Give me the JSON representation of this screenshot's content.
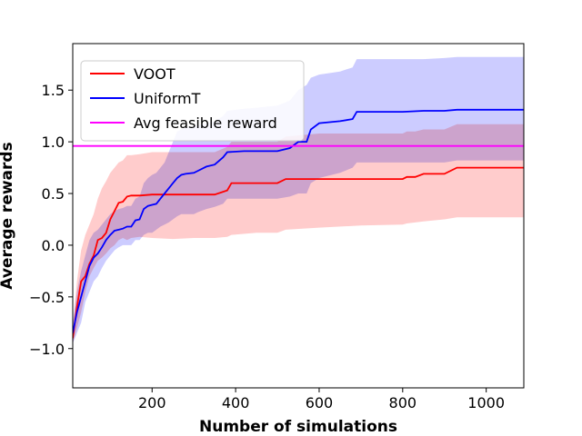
{
  "chart_data": {
    "type": "line",
    "title": "",
    "xlabel": "Number of simulations",
    "ylabel": "Average rewards",
    "xlim": [
      10,
      1090
    ],
    "ylim": [
      -1.38,
      1.95
    ],
    "xticks": [
      200,
      400,
      600,
      800,
      1000
    ],
    "yticks": [
      -1.0,
      -0.5,
      0.0,
      0.5,
      1.0,
      1.5
    ],
    "grid": false,
    "legend_position": "top-left",
    "series": [
      {
        "name": "VOOT",
        "color": "#ff0000",
        "band_color": "#ffcccc",
        "x": [
          10,
          20,
          30,
          40,
          50,
          60,
          70,
          80,
          90,
          100,
          110,
          120,
          130,
          140,
          150,
          170,
          200,
          250,
          300,
          350,
          380,
          390,
          450,
          500,
          520,
          600,
          700,
          800,
          810,
          830,
          850,
          900,
          930,
          1000,
          1090
        ],
        "y": [
          -0.9,
          -0.6,
          -0.35,
          -0.3,
          -0.18,
          -0.1,
          0.05,
          0.07,
          0.12,
          0.25,
          0.33,
          0.41,
          0.42,
          0.47,
          0.48,
          0.48,
          0.49,
          0.49,
          0.49,
          0.49,
          0.53,
          0.6,
          0.6,
          0.6,
          0.64,
          0.64,
          0.64,
          0.64,
          0.66,
          0.66,
          0.69,
          0.69,
          0.75,
          0.75,
          0.75
        ],
        "lower": [
          -0.95,
          -0.8,
          -0.65,
          -0.45,
          -0.3,
          -0.22,
          -0.15,
          -0.12,
          -0.08,
          -0.03,
          0.0,
          0.05,
          0.07,
          0.05,
          0.07,
          0.08,
          0.07,
          0.06,
          0.07,
          0.07,
          0.08,
          0.1,
          0.12,
          0.12,
          0.15,
          0.17,
          0.19,
          0.2,
          0.21,
          0.22,
          0.23,
          0.25,
          0.27,
          0.27,
          0.27
        ],
        "upper": [
          -0.8,
          -0.35,
          -0.05,
          0.1,
          0.2,
          0.3,
          0.45,
          0.55,
          0.62,
          0.7,
          0.75,
          0.8,
          0.82,
          0.87,
          0.87,
          0.88,
          0.9,
          0.9,
          0.9,
          0.9,
          0.95,
          1.0,
          1.0,
          1.0,
          1.05,
          1.08,
          1.08,
          1.08,
          1.1,
          1.1,
          1.12,
          1.12,
          1.17,
          1.17,
          1.17
        ]
      },
      {
        "name": "UniformT",
        "color": "#0000ff",
        "band_color": "#ccccff",
        "x": [
          10,
          20,
          30,
          40,
          50,
          60,
          70,
          80,
          90,
          100,
          110,
          120,
          130,
          140,
          150,
          160,
          170,
          180,
          190,
          200,
          210,
          220,
          230,
          240,
          250,
          260,
          270,
          280,
          300,
          310,
          330,
          350,
          370,
          380,
          420,
          450,
          500,
          530,
          550,
          570,
          580,
          600,
          650,
          680,
          690,
          750,
          800,
          850,
          900,
          930,
          1000,
          1090
        ],
        "y": [
          -0.85,
          -0.65,
          -0.5,
          -0.35,
          -0.2,
          -0.12,
          -0.08,
          -0.02,
          0.05,
          0.1,
          0.14,
          0.15,
          0.16,
          0.18,
          0.18,
          0.24,
          0.25,
          0.35,
          0.38,
          0.39,
          0.4,
          0.45,
          0.5,
          0.55,
          0.6,
          0.65,
          0.68,
          0.69,
          0.7,
          0.72,
          0.76,
          0.78,
          0.85,
          0.9,
          0.91,
          0.91,
          0.91,
          0.94,
          1.0,
          1.0,
          1.12,
          1.18,
          1.2,
          1.22,
          1.29,
          1.29,
          1.29,
          1.3,
          1.3,
          1.31,
          1.31,
          1.31
        ],
        "lower": [
          -0.95,
          -0.85,
          -0.75,
          -0.55,
          -0.45,
          -0.35,
          -0.3,
          -0.22,
          -0.15,
          -0.1,
          -0.05,
          -0.02,
          0.0,
          0.0,
          0.0,
          0.05,
          0.05,
          0.1,
          0.12,
          0.12,
          0.15,
          0.18,
          0.2,
          0.22,
          0.25,
          0.28,
          0.3,
          0.3,
          0.3,
          0.32,
          0.35,
          0.37,
          0.4,
          0.45,
          0.45,
          0.45,
          0.45,
          0.47,
          0.5,
          0.5,
          0.6,
          0.65,
          0.7,
          0.75,
          0.8,
          0.8,
          0.8,
          0.8,
          0.8,
          0.82,
          0.82,
          0.82
        ],
        "upper": [
          -0.75,
          -0.45,
          -0.25,
          -0.1,
          0.05,
          0.12,
          0.15,
          0.2,
          0.25,
          0.3,
          0.33,
          0.35,
          0.36,
          0.38,
          0.38,
          0.45,
          0.47,
          0.6,
          0.65,
          0.68,
          0.7,
          0.75,
          0.8,
          0.9,
          1.0,
          1.1,
          1.12,
          1.14,
          1.15,
          1.16,
          1.18,
          1.2,
          1.25,
          1.3,
          1.32,
          1.33,
          1.35,
          1.4,
          1.5,
          1.55,
          1.62,
          1.65,
          1.68,
          1.72,
          1.8,
          1.8,
          1.8,
          1.8,
          1.81,
          1.82,
          1.82,
          1.82
        ]
      },
      {
        "name": "Avg feasible reward",
        "color": "#ff00ff",
        "x": [
          10,
          1090
        ],
        "y": [
          0.96,
          0.96
        ]
      }
    ]
  }
}
